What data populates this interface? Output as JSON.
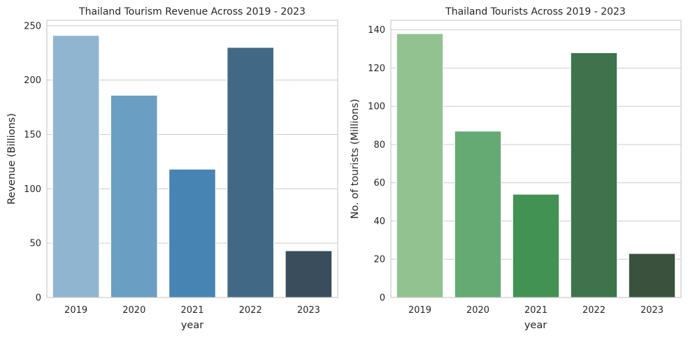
{
  "chart_data": [
    {
      "type": "bar",
      "title": "Thailand Tourism Revenue Across 2019 - 2023",
      "xlabel": "year",
      "ylabel": "Revenue (Billions)",
      "categories": [
        "2019",
        "2020",
        "2021",
        "2022",
        "2023"
      ],
      "values": [
        241,
        186,
        118,
        230,
        43
      ],
      "ylim": [
        0,
        255
      ],
      "yticks": [
        0,
        50,
        100,
        150,
        200,
        250
      ],
      "colors": [
        "#8fb5d1",
        "#6a9ec2",
        "#4784b3",
        "#416986",
        "#3a4d5c"
      ],
      "grid": true
    },
    {
      "type": "bar",
      "title": "Thailand Tourists Across 2019 - 2023",
      "xlabel": "year",
      "ylabel": "No. of tourists (Millions)",
      "categories": [
        "2019",
        "2020",
        "2021",
        "2022",
        "2023"
      ],
      "values": [
        138,
        87,
        54,
        128,
        23
      ],
      "ylim": [
        0,
        145
      ],
      "yticks": [
        0,
        20,
        40,
        60,
        80,
        100,
        120,
        140
      ],
      "colors": [
        "#91c28f",
        "#66aa73",
        "#429253",
        "#3e734c",
        "#3a513e"
      ],
      "grid": true
    }
  ]
}
